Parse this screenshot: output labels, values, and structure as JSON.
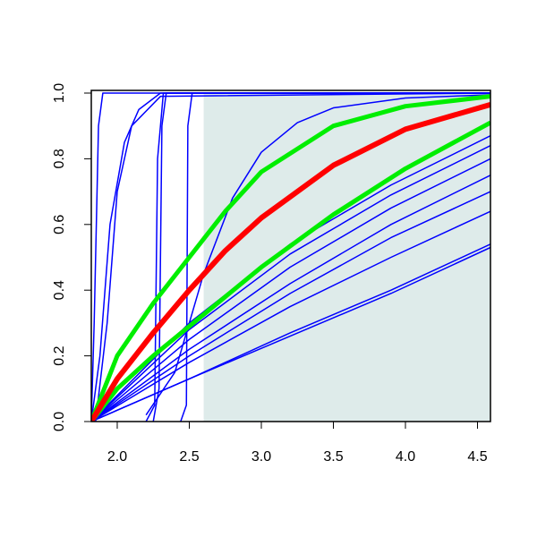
{
  "chart_data": {
    "type": "line",
    "xlim": [
      1.82,
      4.59
    ],
    "ylim": [
      0,
      1
    ],
    "xticks": [
      {
        "value": 2,
        "label": "2.0"
      },
      {
        "value": 2.5,
        "label": "2.5"
      },
      {
        "value": 3,
        "label": "3.0"
      },
      {
        "value": 3.5,
        "label": "3.5"
      },
      {
        "value": 4,
        "label": "4.0"
      },
      {
        "value": 4.5,
        "label": "4.5"
      }
    ],
    "yticks": [
      {
        "value": 0,
        "label": "0.0"
      },
      {
        "value": 0.2,
        "label": "0.2"
      },
      {
        "value": 0.4,
        "label": "0.4"
      },
      {
        "value": 0.6,
        "label": "0.6"
      },
      {
        "value": 0.8,
        "label": "0.8"
      },
      {
        "value": 1,
        "label": "1.0"
      }
    ],
    "shaded_region": {
      "x": [
        2.6,
        4.59
      ],
      "y": [
        0,
        1
      ],
      "color": "#deebea"
    },
    "series": [
      {
        "color": "#0000ff",
        "width": 1.5,
        "x": [
          1.82,
          2.5,
          3.2,
          3.9,
          4.59
        ],
        "values": [
          0,
          0.13,
          0.27,
          0.4,
          0.54
        ]
      },
      {
        "color": "#0000ff",
        "width": 1.5,
        "x": [
          1.82,
          2.5,
          3.2,
          3.9,
          4.59
        ],
        "values": [
          0,
          0.13,
          0.26,
          0.39,
          0.53
        ]
      },
      {
        "color": "#0000ff",
        "width": 1.5,
        "x": [
          1.82,
          2.5,
          3.2,
          3.9,
          4.59
        ],
        "values": [
          0,
          0.18,
          0.35,
          0.5,
          0.64
        ]
      },
      {
        "color": "#0000ff",
        "width": 1.5,
        "x": [
          1.82,
          2.5,
          3.2,
          3.9,
          4.59
        ],
        "values": [
          0,
          0.2,
          0.39,
          0.56,
          0.7
        ]
      },
      {
        "color": "#0000ff",
        "width": 1.5,
        "x": [
          1.82,
          2.5,
          3.2,
          3.9,
          4.59
        ],
        "values": [
          0,
          0.22,
          0.42,
          0.6,
          0.75
        ]
      },
      {
        "color": "#0000ff",
        "width": 1.5,
        "x": [
          1.82,
          2.5,
          3.2,
          3.9,
          4.59
        ],
        "values": [
          0,
          0.25,
          0.47,
          0.65,
          0.8
        ]
      },
      {
        "color": "#0000ff",
        "width": 1.5,
        "x": [
          1.82,
          2.5,
          3.2,
          3.9,
          4.59
        ],
        "values": [
          0,
          0.28,
          0.51,
          0.69,
          0.84
        ]
      },
      {
        "color": "#0000ff",
        "width": 1.5,
        "x": [
          1.82,
          2.5,
          3.2,
          3.9,
          4.59
        ],
        "values": [
          0,
          0.3,
          0.54,
          0.72,
          0.87
        ]
      },
      {
        "color": "#0000ff",
        "width": 1.5,
        "x": [
          1.82,
          1.84,
          1.87,
          1.9,
          4.59
        ],
        "values": [
          0,
          0.3,
          0.9,
          1,
          1
        ]
      },
      {
        "color": "#0000ff",
        "width": 1.5,
        "x": [
          1.82,
          1.88,
          1.95,
          2.05,
          2.15,
          2.3,
          4.59
        ],
        "values": [
          0,
          0.2,
          0.6,
          0.85,
          0.95,
          1,
          1
        ]
      },
      {
        "color": "#0000ff",
        "width": 1.5,
        "x": [
          1.85,
          1.93,
          2.0,
          2.1,
          2.3,
          4.59
        ],
        "values": [
          0,
          0.3,
          0.7,
          0.9,
          0.99,
          1
        ]
      },
      {
        "color": "#0000ff",
        "width": 1.5,
        "x": [
          2.2,
          2.26,
          2.28,
          2.32,
          4.59
        ],
        "values": [
          0,
          0.05,
          0.8,
          1,
          1
        ]
      },
      {
        "color": "#0000ff",
        "width": 1.5,
        "x": [
          2.25,
          2.29,
          2.31,
          2.34,
          4.59
        ],
        "values": [
          0,
          0.1,
          0.9,
          1,
          1
        ]
      },
      {
        "color": "#0000ff",
        "width": 1.5,
        "x": [
          2.44,
          2.48,
          2.49,
          2.52,
          4.59
        ],
        "values": [
          0,
          0.05,
          0.9,
          1,
          1
        ]
      },
      {
        "color": "#0000ff",
        "width": 1.5,
        "x": [
          2.2,
          2.4,
          2.6,
          2.8,
          3.0,
          3.25,
          3.5,
          4.0,
          4.59
        ],
        "values": [
          0.02,
          0.15,
          0.45,
          0.68,
          0.82,
          0.91,
          0.955,
          0.985,
          0.995
        ]
      },
      {
        "color": "#00ee00",
        "width": 5,
        "x": [
          1.82,
          2.0,
          2.25,
          2.5,
          2.75,
          3.0,
          3.5,
          4.0,
          4.59
        ],
        "values": [
          0,
          0.2,
          0.36,
          0.5,
          0.64,
          0.76,
          0.9,
          0.96,
          0.99
        ]
      },
      {
        "color": "#00ee00",
        "width": 5,
        "x": [
          1.82,
          2.0,
          2.25,
          2.5,
          2.75,
          3.0,
          3.5,
          4.0,
          4.59
        ],
        "values": [
          0,
          0.1,
          0.2,
          0.29,
          0.38,
          0.47,
          0.63,
          0.77,
          0.91
        ]
      },
      {
        "color": "#ff0000",
        "width": 6,
        "x": [
          1.82,
          2.0,
          2.25,
          2.5,
          2.75,
          3.0,
          3.5,
          4.0,
          4.59
        ],
        "values": [
          0,
          0.13,
          0.27,
          0.4,
          0.52,
          0.62,
          0.78,
          0.89,
          0.965
        ]
      }
    ]
  }
}
